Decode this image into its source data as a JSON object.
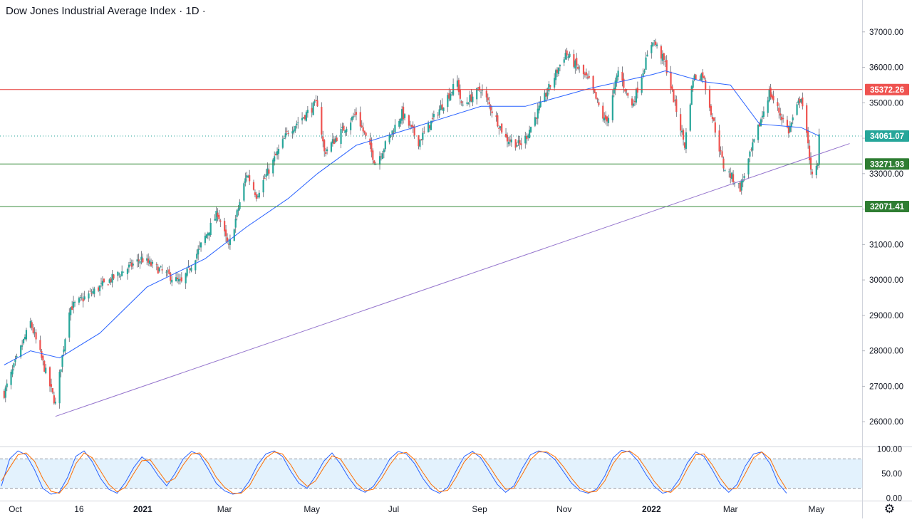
{
  "header": {
    "title": "Dow Jones Industrial Average Index · 1D ·"
  },
  "colors": {
    "up": "#26a69a",
    "down": "#ef5350",
    "ma": "#2962ff",
    "trendline": "#9575cd",
    "resistance": "#e53935",
    "support": "#388e3c",
    "stoch_k": "#2962ff",
    "stoch_d": "#ff6d00",
    "stoch_band": "#e3f2fd"
  },
  "chart_data": [
    {
      "type": "candlestick",
      "title": "Dow Jones Industrial Average Index · 1D ·",
      "ylim": [
        25300,
        37900
      ],
      "yticks": [
        26000,
        27000,
        28000,
        29000,
        30000,
        31000,
        32000,
        33000,
        34000,
        35000,
        36000,
        37000
      ],
      "ytick_labels": [
        "26000.00",
        "27000.00",
        "28000.00",
        "29000.00",
        "30000.00",
        "31000.00",
        "32000.00",
        "33000.00",
        "34000.00",
        "35000.00",
        "36000.00",
        "37000.00"
      ],
      "x_labels": [
        "Oct",
        "16",
        "2021",
        "Mar",
        "May",
        "Jul",
        "Sep",
        "Nov",
        "2022",
        "Mar",
        "May"
      ],
      "close_anchors": [
        [
          "2020-09-23",
          26800
        ],
        [
          "2020-10-12",
          28800
        ],
        [
          "2020-10-30",
          26500
        ],
        [
          "2020-11-09",
          29200
        ],
        [
          "2020-12-01",
          29800
        ],
        [
          "2020-12-31",
          30600
        ],
        [
          "2021-01-29",
          29900
        ],
        [
          "2021-02-24",
          31900
        ],
        [
          "2021-03-04",
          30900
        ],
        [
          "2021-03-17",
          33000
        ],
        [
          "2021-03-24",
          32400
        ],
        [
          "2021-04-16",
          34200
        ],
        [
          "2021-05-07",
          35000
        ],
        [
          "2021-05-12",
          33600
        ],
        [
          "2021-06-04",
          34700
        ],
        [
          "2021-06-18",
          33300
        ],
        [
          "2021-07-07",
          34700
        ],
        [
          "2021-07-19",
          33900
        ],
        [
          "2021-08-16",
          35600
        ],
        [
          "2021-08-19",
          34900
        ],
        [
          "2021-09-02",
          35400
        ],
        [
          "2021-09-20",
          34000
        ],
        [
          "2021-09-30",
          33800
        ],
        [
          "2021-10-04",
          34000
        ],
        [
          "2021-11-02",
          36400
        ],
        [
          "2021-11-19",
          35600
        ],
        [
          "2021-11-30",
          34500
        ],
        [
          "2021-12-03",
          34600
        ],
        [
          "2021-12-10",
          35900
        ],
        [
          "2021-12-20",
          34900
        ],
        [
          "2022-01-04",
          36800
        ],
        [
          "2022-01-13",
          36100
        ],
        [
          "2022-01-27",
          33800
        ],
        [
          "2022-02-02",
          35700
        ],
        [
          "2022-02-09",
          35800
        ],
        [
          "2022-02-24",
          33200
        ],
        [
          "2022-03-08",
          32600
        ],
        [
          "2022-03-29",
          35300
        ],
        [
          "2022-04-12",
          34200
        ],
        [
          "2022-04-21",
          35200
        ],
        [
          "2022-04-29",
          32900
        ],
        [
          "2022-05-03",
          33200
        ],
        [
          "2022-05-04",
          34061
        ]
      ],
      "moving_average": {
        "anchors": [
          [
            "2020-09-23",
            27600
          ],
          [
            "2020-10-12",
            28000
          ],
          [
            "2020-11-02",
            27800
          ],
          [
            "2020-12-01",
            28500
          ],
          [
            "2021-01-04",
            29800
          ],
          [
            "2021-02-15",
            30600
          ],
          [
            "2021-03-17",
            31500
          ],
          [
            "2021-04-16",
            32300
          ],
          [
            "2021-05-07",
            33000
          ],
          [
            "2021-06-04",
            33800
          ],
          [
            "2021-07-07",
            34200
          ],
          [
            "2021-09-02",
            34900
          ],
          [
            "2021-10-04",
            34900
          ],
          [
            "2021-11-19",
            35400
          ],
          [
            "2022-01-04",
            35800
          ],
          [
            "2022-01-13",
            35900
          ],
          [
            "2022-02-09",
            35600
          ],
          [
            "2022-03-01",
            35500
          ],
          [
            "2022-03-22",
            34400
          ],
          [
            "2022-04-21",
            34300
          ],
          [
            "2022-05-04",
            34061
          ]
        ]
      },
      "horizontal_lines": [
        {
          "value": 35372.26,
          "label": "35372.26",
          "role": "resistance",
          "style": "solid"
        },
        {
          "value": 34061.07,
          "label": "34061.07",
          "role": "last-price",
          "style": "dotted"
        },
        {
          "value": 33271.93,
          "label": "33271.93",
          "role": "support",
          "style": "solid"
        },
        {
          "value": 32071.41,
          "label": "32071.41",
          "role": "support",
          "style": "solid"
        }
      ],
      "trendline": {
        "from": [
          "2020-10-30",
          26150
        ],
        "to": [
          "2022-05-26",
          33850
        ]
      }
    },
    {
      "type": "line",
      "title": "",
      "ylim": [
        -5,
        105
      ],
      "yticks": [
        0,
        50,
        100
      ],
      "ytick_labels": [
        "0.00",
        "50.00",
        "100.00"
      ],
      "bands": [
        20,
        80
      ],
      "series": [
        {
          "key": "k",
          "values": [
            25,
            80,
            96,
            88,
            58,
            20,
            8,
            12,
            42,
            85,
            96,
            74,
            40,
            18,
            10,
            32,
            62,
            84,
            70,
            45,
            25,
            50,
            80,
            95,
            88,
            60,
            30,
            15,
            8,
            12,
            35,
            68,
            90,
            96,
            85,
            55,
            30,
            20,
            45,
            75,
            92,
            70,
            42,
            20,
            12,
            24,
            50,
            80,
            95,
            90,
            70,
            40,
            18,
            10,
            22,
            55,
            85,
            95,
            82,
            55,
            28,
            12,
            25,
            60,
            88,
            96,
            92,
            78,
            54,
            30,
            15,
            10,
            18,
            45,
            82,
            97,
            94,
            76,
            48,
            24,
            10,
            15,
            38,
            72,
            94,
            85,
            58,
            28,
            12,
            28,
            65,
            90,
            94,
            70,
            30,
            10
          ]
        },
        {
          "key": "d",
          "values": [
            35,
            62,
            88,
            92,
            75,
            40,
            14,
            10,
            30,
            70,
            92,
            82,
            55,
            28,
            13,
            22,
            50,
            76,
            78,
            55,
            32,
            40,
            68,
            90,
            92,
            72,
            42,
            22,
            10,
            10,
            25,
            55,
            82,
            94,
            90,
            68,
            40,
            24,
            35,
            62,
            86,
            80,
            55,
            30,
            15,
            18,
            40,
            68,
            90,
            93,
            78,
            52,
            28,
            13,
            16,
            42,
            74,
            92,
            88,
            66,
            40,
            18,
            20,
            48,
            78,
            94,
            94,
            84,
            64,
            40,
            20,
            12,
            14,
            35,
            70,
            92,
            96,
            84,
            60,
            34,
            15,
            12,
            28,
            60,
            88,
            90,
            68,
            40,
            18,
            20,
            50,
            82,
            94,
            80,
            45,
            18
          ]
        }
      ]
    }
  ]
}
